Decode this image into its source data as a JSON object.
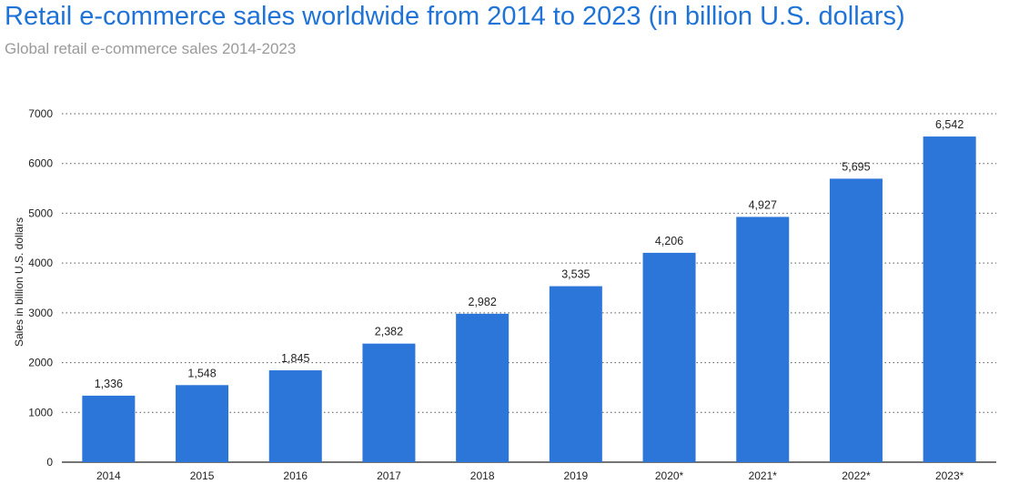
{
  "title": "Retail e-commerce sales worldwide from 2014 to 2023 (in billion U.S. dollars)",
  "subtitle": "Global retail e-commerce sales 2014-2023",
  "chart_data": {
    "type": "bar",
    "categories": [
      "2014",
      "2015",
      "2016",
      "2017",
      "2018",
      "2019",
      "2020*",
      "2021*",
      "2022*",
      "2023*"
    ],
    "values": [
      1336,
      1548,
      1845,
      2382,
      2982,
      3535,
      4206,
      4927,
      5695,
      6542
    ],
    "value_labels": [
      "1,336",
      "1,548",
      "1,845",
      "2,382",
      "2,982",
      "3,535",
      "4,206",
      "4,927",
      "5,695",
      "6,542"
    ],
    "ylabel": "Sales in billion U.S. dollars",
    "ylim": [
      0,
      7000
    ],
    "yticks": [
      0,
      1000,
      2000,
      3000,
      4000,
      5000,
      6000,
      7000
    ],
    "grid": true,
    "bar_color": "#2c75d9",
    "title_color": "#1f73d6"
  }
}
